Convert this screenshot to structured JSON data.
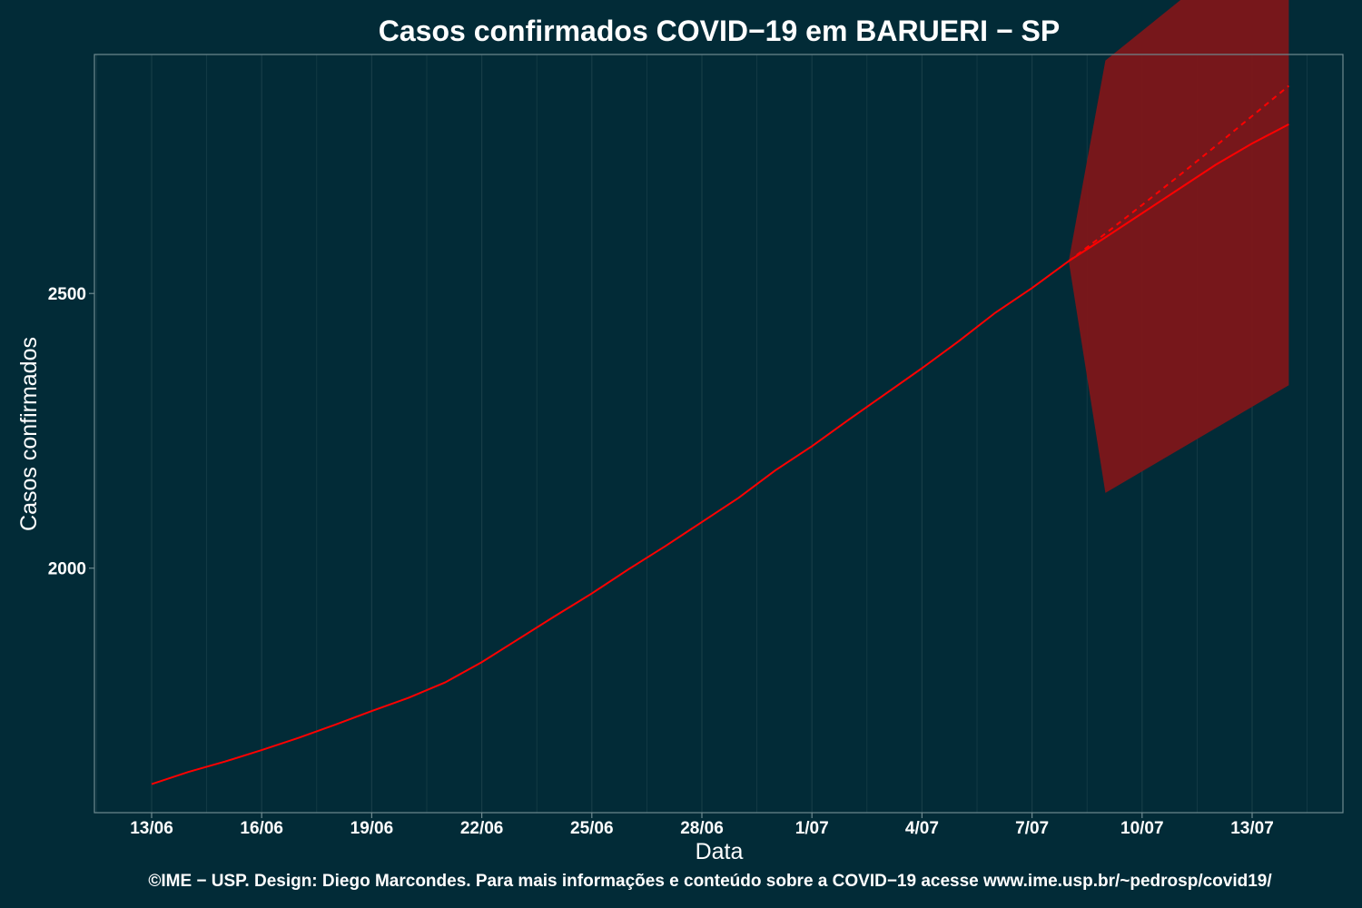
{
  "chart_data": {
    "type": "line",
    "title": "Casos confirmados COVID−19 em BARUERI − SP",
    "xlabel": "Data",
    "ylabel": "Casos confirmados",
    "caption": "©IME − USP. Design: Diego Marcondes. Para mais informações e conteúdo sobre a COVID−19 acesse www.ime.usp.br/~pedrosp/covid19/",
    "x_ticks": [
      "13/06",
      "16/06",
      "19/06",
      "22/06",
      "25/06",
      "28/06",
      "1/07",
      "4/07",
      "7/07",
      "10/07",
      "13/07"
    ],
    "y_ticks": [
      2000,
      2500
    ],
    "ylim": [
      1555,
      2935
    ],
    "grid": true,
    "colors": {
      "background": "#022b37",
      "grid": "#173d47",
      "line": "#ff0000",
      "band": "#7d1619",
      "frame": "#6f8a90"
    },
    "series": [
      {
        "values": [
          {
            "x": "13/06",
            "y": 1607
          },
          {
            "x": "14/06",
            "y": 1629
          },
          {
            "x": "15/06",
            "y": 1648
          },
          {
            "x": "16/06",
            "y": 1669
          },
          {
            "x": "17/06",
            "y": 1691
          },
          {
            "x": "18/06",
            "y": 1715
          },
          {
            "x": "19/06",
            "y": 1740
          },
          {
            "x": "20/06",
            "y": 1764
          },
          {
            "x": "21/06",
            "y": 1792
          },
          {
            "x": "22/06",
            "y": 1829
          },
          {
            "x": "23/06",
            "y": 1871
          },
          {
            "x": "24/06",
            "y": 1913
          },
          {
            "x": "25/06",
            "y": 1954
          },
          {
            "x": "26/06",
            "y": 1998
          },
          {
            "x": "27/06",
            "y": 2040
          },
          {
            "x": "28/06",
            "y": 2084
          },
          {
            "x": "29/06",
            "y": 2128
          },
          {
            "x": "30/06",
            "y": 2178
          },
          {
            "x": "1/07",
            "y": 2222
          },
          {
            "x": "2/07",
            "y": 2270
          },
          {
            "x": "3/07",
            "y": 2317
          },
          {
            "x": "4/07",
            "y": 2364
          },
          {
            "x": "5/07",
            "y": 2413
          },
          {
            "x": "6/07",
            "y": 2465
          },
          {
            "x": "7/07",
            "y": 2510
          },
          {
            "x": "8/07",
            "y": 2559
          }
        ]
      },
      {
        "style": "dashed",
        "values": [
          {
            "x": "8/07",
            "y": 2559
          },
          {
            "x": "9/07",
            "y": 2609
          },
          {
            "x": "10/07",
            "y": 2661
          },
          {
            "x": "11/07",
            "y": 2714
          },
          {
            "x": "12/07",
            "y": 2768
          },
          {
            "x": "13/07",
            "y": 2823
          },
          {
            "x": "14/07",
            "y": 2878
          }
        ]
      },
      {
        "values": [
          {
            "x": "8/07",
            "y": 2559
          },
          {
            "x": "9/07",
            "y": 2602
          },
          {
            "x": "10/07",
            "y": 2646
          },
          {
            "x": "11/07",
            "y": 2690
          },
          {
            "x": "12/07",
            "y": 2734
          },
          {
            "x": "13/07",
            "y": 2773
          },
          {
            "x": "14/07",
            "y": 2808
          }
        ]
      }
    ],
    "band": [
      {
        "x": "8/07",
        "low": 2559,
        "high": 2559
      },
      {
        "x": "9/07",
        "low": 2137,
        "high": 2924
      },
      {
        "x": "14/07",
        "low": 2333,
        "high": 3193
      }
    ]
  }
}
